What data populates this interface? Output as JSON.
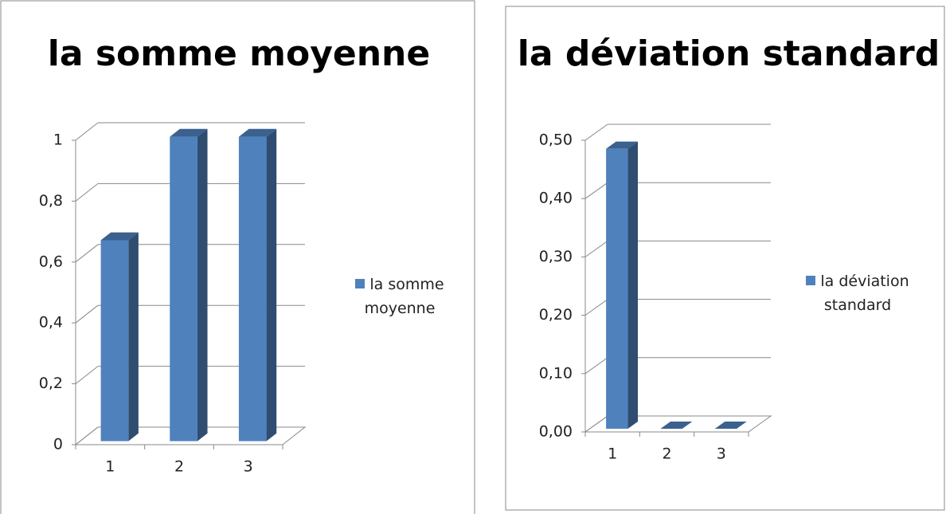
{
  "charts": [
    {
      "type": "bar3d",
      "title": "la somme moyenne",
      "categories": [
        "1",
        "2",
        "3"
      ],
      "series": [
        {
          "name": "la somme moyenne",
          "color": "#4f81bd",
          "values": [
            0.66,
            1,
            1
          ]
        }
      ],
      "ylim": [
        0,
        1
      ],
      "yticks": [
        0,
        {
          "value": 0.2,
          "label": "0,2"
        },
        {
          "value": 0.4,
          "label": "0,4"
        },
        {
          "value": 0.6,
          "label": "0,6"
        },
        {
          "value": 0.8,
          "label": "0,8"
        },
        1
      ],
      "grid": true,
      "legend": "right"
    },
    {
      "type": "bar3d",
      "title": "la déviation standard",
      "categories": [
        "1",
        "2",
        "3"
      ],
      "series": [
        {
          "name": "la déviation standard",
          "color": "#4f81bd",
          "values": [
            0.48,
            0,
            0
          ]
        }
      ],
      "ylim": [
        0,
        0.5
      ],
      "yticks": [
        {
          "value": 0,
          "label": "0,00"
        },
        {
          "value": 0.1,
          "label": "0,10"
        },
        {
          "value": 0.2,
          "label": "0,20"
        },
        {
          "value": 0.3,
          "label": "0,30"
        },
        {
          "value": 0.4,
          "label": "0,40"
        },
        {
          "value": 0.5,
          "label": "0,50"
        }
      ],
      "grid": true,
      "legend": "right"
    }
  ]
}
